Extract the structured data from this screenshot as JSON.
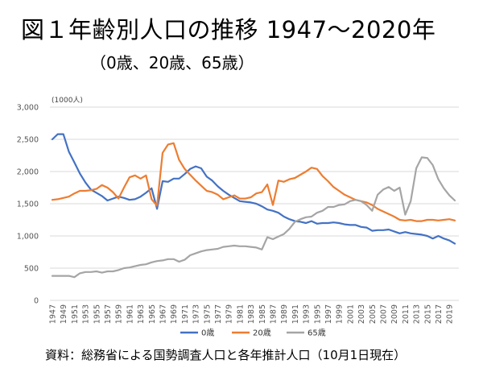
{
  "title": "図１年齢別人口の推移 1947〜2020年",
  "subtitle": "（0歳、20歳、65歳）",
  "source": "資料：総務省による国勢調査人口と各年推計人口（10月1日現在）",
  "colors": {
    "age0": "#4472C4",
    "age20": "#ED7D31",
    "age65": "#A5A5A5",
    "grid": "#D9D9D9"
  },
  "chart_data": {
    "type": "line",
    "unit_label": "(1000人)",
    "ylim": [
      0,
      3000
    ],
    "yticks": [
      0,
      500,
      1000,
      1500,
      2000,
      2500,
      3000
    ],
    "ytick_labels": [
      "0",
      "500",
      "1,000",
      "1,500",
      "2,000",
      "2,500",
      "3,000"
    ],
    "grid": true,
    "legend_position": "bottom",
    "x_label_years": [
      1947,
      1949,
      1951,
      1953,
      1955,
      1957,
      1959,
      1961,
      1963,
      1965,
      1967,
      1969,
      1971,
      1973,
      1975,
      1977,
      1979,
      1981,
      1983,
      1985,
      1987,
      1989,
      1991,
      1993,
      1995,
      1997,
      1999,
      2001,
      2003,
      2005,
      2007,
      2009,
      2011,
      2013,
      2015,
      2017,
      2019
    ],
    "x": [
      1947,
      1948,
      1949,
      1950,
      1951,
      1952,
      1953,
      1954,
      1955,
      1956,
      1957,
      1958,
      1959,
      1960,
      1961,
      1962,
      1963,
      1964,
      1965,
      1966,
      1967,
      1968,
      1969,
      1970,
      1971,
      1972,
      1973,
      1974,
      1975,
      1976,
      1977,
      1978,
      1979,
      1980,
      1981,
      1982,
      1983,
      1984,
      1985,
      1986,
      1987,
      1988,
      1989,
      1990,
      1991,
      1992,
      1993,
      1994,
      1995,
      1996,
      1997,
      1998,
      1999,
      2000,
      2001,
      2002,
      2003,
      2004,
      2005,
      2006,
      2007,
      2008,
      2009,
      2010,
      2011,
      2012,
      2013,
      2014,
      2015,
      2016,
      2017,
      2018,
      2019,
      2020
    ],
    "series": [
      {
        "name": "0歳",
        "color_key": "age0",
        "values": [
          2500,
          2580,
          2580,
          2310,
          2140,
          1970,
          1830,
          1720,
          1670,
          1620,
          1550,
          1580,
          1610,
          1590,
          1560,
          1570,
          1610,
          1670,
          1740,
          1420,
          1850,
          1840,
          1890,
          1890,
          1960,
          2040,
          2080,
          2050,
          1920,
          1860,
          1770,
          1700,
          1640,
          1590,
          1540,
          1530,
          1520,
          1500,
          1460,
          1410,
          1390,
          1360,
          1300,
          1260,
          1230,
          1220,
          1200,
          1230,
          1190,
          1200,
          1200,
          1210,
          1200,
          1180,
          1170,
          1170,
          1140,
          1130,
          1080,
          1090,
          1090,
          1100,
          1070,
          1040,
          1060,
          1040,
          1030,
          1020,
          1000,
          960,
          1000,
          960,
          930,
          880
        ]
      },
      {
        "name": "20歳",
        "color_key": "age20",
        "values": [
          1560,
          1570,
          1590,
          1610,
          1660,
          1700,
          1700,
          1710,
          1730,
          1790,
          1750,
          1680,
          1580,
          1750,
          1910,
          1940,
          1890,
          1940,
          1570,
          1470,
          2290,
          2420,
          2440,
          2180,
          2040,
          1950,
          1860,
          1780,
          1700,
          1680,
          1640,
          1570,
          1600,
          1630,
          1580,
          1580,
          1600,
          1660,
          1680,
          1800,
          1480,
          1860,
          1840,
          1880,
          1900,
          1950,
          2000,
          2060,
          2040,
          1930,
          1850,
          1760,
          1700,
          1640,
          1600,
          1560,
          1540,
          1520,
          1480,
          1420,
          1380,
          1340,
          1300,
          1250,
          1240,
          1250,
          1230,
          1230,
          1250,
          1250,
          1240,
          1250,
          1260,
          1240
        ]
      },
      {
        "name": "65歳",
        "color_key": "age65",
        "values": [
          380,
          380,
          380,
          380,
          360,
          420,
          440,
          440,
          450,
          430,
          450,
          450,
          470,
          500,
          510,
          530,
          550,
          560,
          590,
          610,
          620,
          640,
          640,
          600,
          630,
          700,
          730,
          760,
          780,
          790,
          800,
          830,
          840,
          850,
          840,
          840,
          830,
          820,
          790,
          980,
          950,
          990,
          1030,
          1110,
          1220,
          1260,
          1290,
          1300,
          1360,
          1390,
          1450,
          1450,
          1480,
          1490,
          1540,
          1560,
          1540,
          1480,
          1390,
          1640,
          1720,
          1760,
          1700,
          1750,
          1330,
          1540,
          2050,
          2220,
          2210,
          2100,
          1880,
          1740,
          1630,
          1550
        ]
      }
    ]
  }
}
